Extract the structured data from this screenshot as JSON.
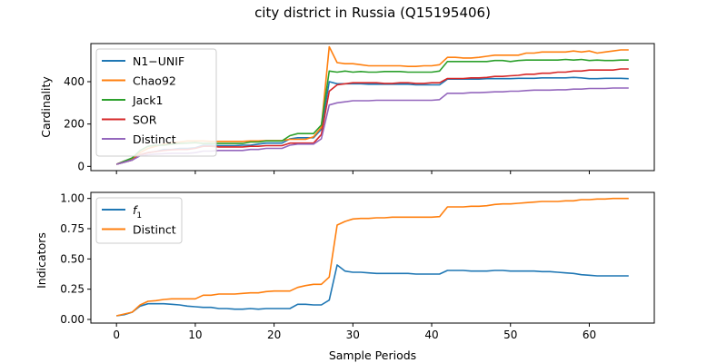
{
  "figure_title": "city district in Russia (Q15195406)",
  "chart_data": [
    {
      "type": "line",
      "ylabel": "Cardinality",
      "xlabel": "",
      "xlim": [
        -3.25,
        68.25
      ],
      "ylim": [
        -20,
        580
      ],
      "xticks": [
        0,
        10,
        20,
        30,
        40,
        50,
        60
      ],
      "xtick_labels_visible": false,
      "yticks": [
        0,
        200,
        400
      ],
      "ytick_labels": [
        "0",
        "200",
        "400"
      ],
      "legend_position": "upper-left",
      "x": [
        0,
        1,
        2,
        3,
        4,
        5,
        6,
        7,
        8,
        9,
        10,
        11,
        12,
        13,
        14,
        15,
        16,
        17,
        18,
        19,
        20,
        21,
        22,
        23,
        24,
        25,
        26,
        27,
        28,
        29,
        30,
        31,
        32,
        33,
        34,
        35,
        36,
        37,
        38,
        39,
        40,
        41,
        42,
        43,
        44,
        45,
        46,
        47,
        48,
        49,
        50,
        51,
        52,
        53,
        54,
        55,
        56,
        57,
        58,
        59,
        60,
        61,
        62,
        63,
        64,
        65
      ],
      "series": [
        {
          "name": "N1−UNIF",
          "color": "#1f77b4",
          "values": [
            10,
            20,
            30,
            55,
            65,
            70,
            80,
            80,
            85,
            85,
            88,
            100,
            100,
            98,
            98,
            98,
            100,
            100,
            105,
            110,
            110,
            110,
            130,
            135,
            135,
            135,
            175,
            400,
            390,
            390,
            390,
            390,
            388,
            388,
            388,
            388,
            388,
            388,
            385,
            385,
            385,
            385,
            412,
            412,
            412,
            412,
            412,
            414,
            414,
            414,
            414,
            416,
            416,
            416,
            418,
            418,
            418,
            418,
            420,
            418,
            414,
            414,
            416,
            416,
            416,
            414
          ]
        },
        {
          "name": "Chao92",
          "color": "#ff7f0e",
          "values": [
            10,
            25,
            35,
            65,
            85,
            95,
            105,
            112,
            115,
            120,
            120,
            120,
            118,
            118,
            118,
            118,
            118,
            120,
            120,
            122,
            122,
            122,
            128,
            128,
            128,
            140,
            185,
            565,
            490,
            485,
            485,
            480,
            475,
            475,
            475,
            475,
            475,
            472,
            472,
            475,
            475,
            480,
            515,
            515,
            512,
            512,
            515,
            520,
            525,
            525,
            525,
            525,
            535,
            535,
            540,
            540,
            540,
            540,
            545,
            540,
            545,
            535,
            540,
            545,
            550,
            550
          ]
        },
        {
          "name": "Jack1",
          "color": "#2ca02c",
          "values": [
            10,
            25,
            40,
            75,
            95,
            100,
            100,
            105,
            108,
            110,
            112,
            108,
            108,
            108,
            108,
            108,
            108,
            115,
            115,
            120,
            120,
            120,
            145,
            155,
            155,
            155,
            195,
            450,
            445,
            450,
            445,
            448,
            445,
            445,
            448,
            448,
            448,
            445,
            445,
            445,
            445,
            450,
            495,
            495,
            495,
            495,
            495,
            495,
            500,
            500,
            495,
            500,
            502,
            502,
            502,
            502,
            502,
            505,
            502,
            505,
            500,
            502,
            500,
            500,
            502,
            502
          ]
        },
        {
          "name": "SOR",
          "color": "#d62728",
          "values": [
            10,
            20,
            30,
            55,
            65,
            70,
            75,
            78,
            80,
            80,
            85,
            95,
            95,
            92,
            92,
            92,
            92,
            95,
            95,
            98,
            98,
            98,
            110,
            110,
            110,
            110,
            150,
            355,
            385,
            390,
            395,
            395,
            395,
            395,
            392,
            392,
            395,
            395,
            392,
            392,
            395,
            395,
            415,
            415,
            415,
            418,
            418,
            420,
            425,
            425,
            428,
            430,
            435,
            435,
            440,
            440,
            445,
            445,
            450,
            450,
            455,
            455,
            455,
            455,
            460,
            460
          ]
        },
        {
          "name": "Distinct",
          "color": "#9467bd",
          "values": [
            10,
            20,
            30,
            50,
            55,
            58,
            60,
            62,
            62,
            62,
            65,
            72,
            72,
            75,
            75,
            75,
            75,
            80,
            80,
            85,
            85,
            85,
            100,
            105,
            105,
            105,
            130,
            290,
            300,
            305,
            310,
            310,
            310,
            312,
            312,
            312,
            312,
            312,
            312,
            312,
            312,
            315,
            345,
            345,
            345,
            348,
            348,
            350,
            352,
            352,
            355,
            355,
            358,
            360,
            360,
            360,
            362,
            362,
            365,
            365,
            368,
            368,
            368,
            370,
            370,
            370
          ]
        }
      ]
    },
    {
      "type": "line",
      "ylabel": "Indicators",
      "xlabel": "Sample Periods",
      "xlim": [
        -3.25,
        68.25
      ],
      "ylim": [
        -0.03,
        1.05
      ],
      "xticks": [
        0,
        10,
        20,
        30,
        40,
        50,
        60
      ],
      "xtick_labels": [
        "0",
        "10",
        "20",
        "30",
        "40",
        "50",
        "60"
      ],
      "yticks": [
        0.0,
        0.25,
        0.5,
        0.75,
        1.0
      ],
      "ytick_labels": [
        "0.00",
        "0.25",
        "0.50",
        "0.75",
        "1.00"
      ],
      "legend_position": "upper-left",
      "x": [
        0,
        1,
        2,
        3,
        4,
        5,
        6,
        7,
        8,
        9,
        10,
        11,
        12,
        13,
        14,
        15,
        16,
        17,
        18,
        19,
        20,
        21,
        22,
        23,
        24,
        25,
        26,
        27,
        28,
        29,
        30,
        31,
        32,
        33,
        34,
        35,
        36,
        37,
        38,
        39,
        40,
        41,
        42,
        43,
        44,
        45,
        46,
        47,
        48,
        49,
        50,
        51,
        52,
        53,
        54,
        55,
        56,
        57,
        58,
        59,
        60,
        61,
        62,
        63,
        64,
        65
      ],
      "series": [
        {
          "name": "f1",
          "legend_label": "f",
          "legend_subscript": "1",
          "color": "#1f77b4",
          "values": [
            0.03,
            0.04,
            0.06,
            0.11,
            0.13,
            0.13,
            0.13,
            0.125,
            0.12,
            0.11,
            0.105,
            0.1,
            0.1,
            0.09,
            0.09,
            0.085,
            0.085,
            0.09,
            0.085,
            0.09,
            0.09,
            0.09,
            0.09,
            0.125,
            0.125,
            0.12,
            0.12,
            0.16,
            0.45,
            0.4,
            0.39,
            0.39,
            0.385,
            0.38,
            0.38,
            0.38,
            0.38,
            0.38,
            0.375,
            0.375,
            0.375,
            0.375,
            0.405,
            0.405,
            0.405,
            0.4,
            0.4,
            0.4,
            0.405,
            0.405,
            0.4,
            0.4,
            0.4,
            0.4,
            0.395,
            0.395,
            0.39,
            0.385,
            0.38,
            0.37,
            0.365,
            0.36,
            0.36,
            0.36,
            0.36,
            0.36
          ]
        },
        {
          "name": "Distinct",
          "color": "#ff7f0e",
          "values": [
            0.03,
            0.045,
            0.06,
            0.12,
            0.15,
            0.155,
            0.165,
            0.17,
            0.17,
            0.17,
            0.17,
            0.2,
            0.2,
            0.21,
            0.21,
            0.21,
            0.215,
            0.22,
            0.22,
            0.23,
            0.235,
            0.235,
            0.235,
            0.265,
            0.28,
            0.29,
            0.29,
            0.35,
            0.78,
            0.81,
            0.83,
            0.835,
            0.835,
            0.84,
            0.84,
            0.845,
            0.845,
            0.845,
            0.845,
            0.845,
            0.845,
            0.85,
            0.93,
            0.93,
            0.93,
            0.935,
            0.935,
            0.94,
            0.95,
            0.955,
            0.955,
            0.96,
            0.965,
            0.97,
            0.975,
            0.975,
            0.975,
            0.98,
            0.98,
            0.99,
            0.99,
            0.995,
            0.995,
            1.0,
            1.0,
            1.0
          ]
        }
      ]
    }
  ]
}
